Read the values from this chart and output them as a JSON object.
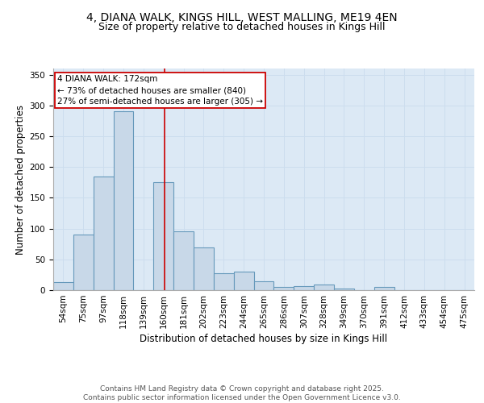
{
  "title": "4, DIANA WALK, KINGS HILL, WEST MALLING, ME19 4EN",
  "subtitle": "Size of property relative to detached houses in Kings Hill",
  "xlabel": "Distribution of detached houses by size in Kings Hill",
  "ylabel": "Number of detached properties",
  "categories": [
    "54sqm",
    "75sqm",
    "97sqm",
    "118sqm",
    "139sqm",
    "160sqm",
    "181sqm",
    "202sqm",
    "223sqm",
    "244sqm",
    "265sqm",
    "286sqm",
    "307sqm",
    "328sqm",
    "349sqm",
    "370sqm",
    "391sqm",
    "412sqm",
    "433sqm",
    "454sqm",
    "475sqm"
  ],
  "values": [
    13,
    90,
    185,
    290,
    0,
    175,
    95,
    70,
    28,
    30,
    15,
    5,
    7,
    9,
    2,
    0,
    5,
    0,
    0,
    0,
    0
  ],
  "bar_color": "#c8d8e8",
  "bar_edge_color": "#6699bb",
  "bar_linewidth": 0.8,
  "property_line_label": "4 DIANA WALK: 172sqm",
  "annotation_line1": "← 73% of detached houses are smaller (840)",
  "annotation_line2": "27% of semi-detached houses are larger (305) →",
  "annotation_box_color": "#ffffff",
  "annotation_box_edge": "#cc0000",
  "property_line_color": "#cc0000",
  "grid_color": "#ccddee",
  "background_color": "#dce9f5",
  "ylim": [
    0,
    360
  ],
  "yticks": [
    0,
    50,
    100,
    150,
    200,
    250,
    300,
    350
  ],
  "footer": "Contains HM Land Registry data © Crown copyright and database right 2025.\nContains public sector information licensed under the Open Government Licence v3.0.",
  "title_fontsize": 10,
  "subtitle_fontsize": 9,
  "xlabel_fontsize": 8.5,
  "ylabel_fontsize": 8.5,
  "tick_fontsize": 7.5,
  "annotation_fontsize": 7.5,
  "footer_fontsize": 6.5
}
